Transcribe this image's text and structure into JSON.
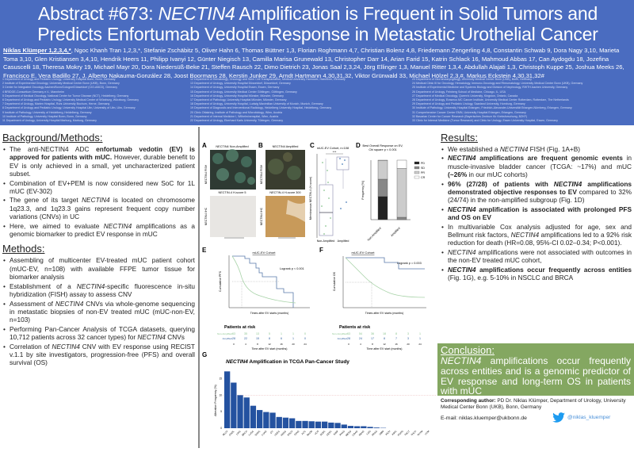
{
  "header": {
    "title_prefix": "Abstract #673: ",
    "title_gene": "NECTIN4",
    "title_rest_line1": " Amplification is Frequent in Solid Tumors and",
    "title_line2": "Predicts Enfortumab Vedotin Response in Metastatic Urothelial Cancer",
    "first_author": "Niklas Klümper 1,2,3,4,*",
    "authors": "Ngoc Khanh Tran 1,2,3,*, Stefanie Zschäbitz 5, Oliver Hahn 6, Thomas Büttner 1,3, Florian Roghmann 4,7, Christian Bolenz 4,8, Friedemann Zengerling 4,8, Constantin Schwab 9, Dora Nagy 3,10, Marieta Toma 3,10, Glen Kristiansen 3,4,10, Hendrik Heers 11, Philipp Ivanyi 12, Günter Niegisch 13, Camilla Marisa Grunewald 13, Christopher Darr 14, Arian Farid 15, Katrin Schlack 16, Mahmoud Abbas 17, Can Aydogdu 18, Jozefina Casuscelli 18, Theresa Mokry 19, Michael Mayr 20, Dora Niedersüß-Beke 21, Steffen Rausch 22, Dimo Dietrich 23, Jonas Saal 2,3,24, Jörg Ellinger 1,3, Manuel Ritter 1,3,4, Abdullah Alajati 1,3, Christoph Kuppe 25, Joshua Meeks 26, Francisco E. Vera Badillo 27, J. Alberto Nakauma-González 28, Joost Boormans 28, Kerstin Junker 29, Arndt Hartmann 4,30,31,32, Viktor Grünwald 33, Michael Hölzel 2,3,#, Markus Eckstein 4,30,31,32#",
    "affiliations_col1": [
      "1 Department of Urology and Pediatric Urology, University Hospital Bonn, Bonn, Germany",
      "2 Institute of Experimental Oncology, University Medical Center Bonn (UKB), Bonn, Germany",
      "3 Center for Integrated Oncology Aachen/Bonn/Cologne/Düsseldorf (CIO-ABCD), Germany",
      "4 BRIDGE-Consortium Germany e.V., Mannheim",
      "5 Department of Medical Oncology, National Center for Tumor Disease (NCT), Heidelberg, Germany",
      "6 Department of Urology and Pediatric Urology, University Medical Center of Würzburg, Würzburg, Germany",
      "7 Department of Urology, Marien Hospital, Ruhr-University Bochum, Herne, Germany",
      "8 Department of Urology and Pediatric Urology, University Hospital Ulm, University of Ulm, Ulm, Germany",
      "9 Institute of Pathology, University of Heidelberg, Heidelberg, Germany",
      "10 Institute of Pathology, University Hospital Bonn, Bonn, Germany",
      "11 Department of Urology, University Hospital Marburg, Marburg, Germany"
    ],
    "affiliations_col2": [
      "12 Department of Hematology, Oncology and Stem Cell Transplantation, Medical University Hannover, Hannover, Germany",
      "13 Department of Urology, University Hospital Düsseldorf, Düsseldorf, Germany",
      "14 Department of Urology, University Hospital Essen, Essen, Germany",
      "15 Department of Urology, University Medical Center Göttingen, Göttingen, Germany",
      "16 Department of Urology, University Hospital Münster, Münster, Germany",
      "17 Department of Pathology, University Hospital Münster, Münster, Germany",
      "18 Department of Urology, University Hospital, Ludwig Maximilian University of Munich, Munich, Germany",
      "19 Department of Diagnostic and Interventional Radiology, Heidelberg University Hospital, Heidelberg, Germany",
      "20 Clinic Ottakring, Institute of Pathology and Microbiology, Wien, Austria",
      "21 Department of Internal Medicine I, Wilhelminenspital, Wien, Austria",
      "22 Department of Urology, Eberhard Karls University, Tübingen, Germany"
    ],
    "affiliations_col3": [
      "23 Department of Otorhinolaryngology, University Medical Center Bonn (UKB), Bonn, Germany",
      "24 Medical Clinic III for Oncology, Hematology, Immuno-Oncology and Rheumatology, University Medical Center Bonn (UKB), Germany",
      "25 Institute of Experimental Medicine and Systems Biology and Division of Nephrology, RWTH Aachen University, Germany",
      "26 Department of Urology, Feinberg School of Medicine, Chicago, IL, USA",
      "27 Department of Medical Oncology, Queen's University, Kingston, Ontario, Canada",
      "28 Department of Urology, Erasmus MC Cancer Institute, University Medical Center Rotterdam, Rotterdam, The Netherlands",
      "29 Department of Urology and Pediatric Urology, Saarland University, Homburg, Germany",
      "30 Institute of Pathology, University Hospital Erlangen, Friedrich-Alexander-Universität Erlangen-Nürnberg, Erlangen, Germany",
      "31 Comprehensive Cancer Center EMN, University Hospital Erlangen, Erlangen, Germany",
      "32 Bavarian Center for Cancer Research (Bayerisches Zentrum für Krebsforschung, BZKF)",
      "33 Clinic for Internal Medicine (Tumor Research) and Clinic for Urology, Essen University Hospital, Essen, Germany"
    ]
  },
  "background": {
    "heading": "Background/Methods:",
    "items": [
      {
        "pre": "The anti-NECTIN4 ADC ",
        "bold": "enfortumab vedotin (EV) is approved for patients with mUC.",
        "post": " However, durable benefit to EV is only achieved in a small, yet uncharacterized patient subset."
      },
      {
        "pre": "Combination of EV+PEM is now considered new SoC for 1L mUC (EV-302)",
        "bold": "",
        "post": ""
      },
      {
        "pre": "The gene of its target ",
        "ital": "NECTIN4",
        "post": " is located on chromosome 1q23.3, and 1q23.3 gains represent frequent copy number variations (CNVs) in UC"
      },
      {
        "pre": "Here, we aimed to evaluate ",
        "ital": "NECTIN4",
        "post": " amplifications as a genomic biomarker to predict EV response in mUC"
      }
    ]
  },
  "methods": {
    "heading": "Methods:",
    "items": [
      {
        "pre": "Assembling of multicenter EV-treated mUC patient cohort (mUC-EV, n=108) with available FFPE tumor tissue for biomarker analysis",
        "ital": "",
        "post": ""
      },
      {
        "pre": "Establishment of a ",
        "ital": "NECTIN4",
        "post": "-specific fluorescence in-situ hybridization (FISH) assay to assess CNV"
      },
      {
        "pre": "Assessment of ",
        "ital": "NECTIN4",
        "post": " CNVs via whole-genome sequencing in metastatic biopsies of non-EV treated mUC (mUC-non-EV, n=103)"
      },
      {
        "pre": "Performing Pan-Cancer Analysis of TCGA datasets, querying 10,712 patients across 32 cancer types) for ",
        "ital": "NECTIN4",
        "post": " CNVs"
      },
      {
        "pre": "Correlation of ",
        "ital": "NECTIN4",
        "post": " CNV with EV response using RECIST v.1.1 by site investigators, progression-free (PFS) and overall survival (OS)"
      }
    ]
  },
  "results": {
    "heading": "Results:",
    "items": [
      {
        "html": "We established a <i>NECTIN4</i> FISH (Fig. 1A+B)"
      },
      {
        "html": "<b><i>NECTIN4</i> amplifications are frequent genomic events</b> in muscle-invasive bladder cancer (TCGA: ~17%) and mUC <b>(~26%</b> in our mUC cohorts)"
      },
      {
        "html": "<b>96% (27/28) of patients with <i>NECTIN4</i> amplifications demonstrated objective responses to EV</b> compared to 32% (24/74) in the non-amplified subgroup (Fig. 1D)"
      },
      {
        "html": "<b><i>NECTIN4</i> amplification is associated with prolonged PFS and OS on EV</b>"
      },
      {
        "html": "In multivariable Cox analysis adjusted for age, sex and Bellmunt risk factors, <i>NECTIN4</i> amplifications led to a 92% risk reduction for death (HR=0.08, 95%-CI 0.02–0.34; P&lt;0.001)."
      },
      {
        "html": "<i>NECTIN4</i> amplifications were not associated with outcomes in the non-EV treated mUC cohort,"
      },
      {
        "html": "<b><i>NECTIN4</i> amplifications occur frequently across entities</b> (Fig. 1G), e.g. 5-10% in NSCLC and BRCA"
      }
    ]
  },
  "conclusion": {
    "heading": "Conclusion:",
    "gene": "NECTIN4",
    "text": " amplifications occur frequently across entities and is a genomic predictor of EV response and long-term OS in patients with mUC"
  },
  "contact": {
    "label": "Corresponding author:",
    "text": " PD Dr. Niklas Klümper, Department of Urology, University Medical Center Bonn (UKB), Bonn, Germany",
    "email": "E-mail: niklas.kluemper@ukbonn.de",
    "twitter": "@niklas_kluemper",
    "twitter_color": "#1d9bf0"
  },
  "figure": {
    "panelA": {
      "label": "A",
      "title_fish": "NECTIN4 Non-Amplified",
      "title_ihc": "NECTIN-4 H-score 5",
      "row1": "NECTIN4 FISH",
      "row2": "NECTIN4 IHC"
    },
    "panelB": {
      "label": "B",
      "title_fish": "NECTIN4 Amplified",
      "title_ihc": "NECTIN-4 H-score 300"
    },
    "panelC": {
      "label": "C",
      "title": "mUC-EV Cohort, n=108",
      "ylabel": "Membranous NECTIN-4 (H-score)",
      "ticks": [
        "0",
        "100",
        "200",
        "300"
      ],
      "cats": [
        "Non-Amplified",
        "Amplified"
      ],
      "sig": "***"
    },
    "panelD": {
      "label": "D",
      "title": "Best Overall Response on EV,",
      "subtitle": "Chi square p < 0.001",
      "ylabel": "Frequency [%]",
      "legend": [
        "PD",
        "SD",
        "PR",
        "CR"
      ],
      "ticks": [
        "0.0",
        "0.2",
        "0.4",
        "0.6",
        "0.8",
        "1.0"
      ],
      "cats": [
        "Non-Amplified",
        "Amplified"
      ]
    },
    "panelE": {
      "label": "E",
      "title": "mUC-EV Cohort",
      "stat": "Logrank p < 0.001",
      "ylabel": "Cumulative PFS",
      "xlabel": "Times after EV starts (months)",
      "risk_title": "Patients at risk",
      "risk_rows": [
        {
          "name": "Non-Amplified",
          "vals": [
            "63",
            "35",
            "13",
            "5",
            "1",
            "1",
            "0"
          ]
        },
        {
          "name": "Amplified",
          "vals": [
            "28",
            "22",
            "15",
            "8",
            "6",
            "1",
            "0"
          ]
        }
      ],
      "xticks": [
        "0",
        "4",
        "8",
        "12",
        "16",
        "20",
        "24"
      ],
      "risk_xlabel": "Time after EV start (months)"
    },
    "panelF": {
      "label": "F",
      "title": "mUC-EV Cohort",
      "stat": "Logrank p = 0.003",
      "ylabel": "Cumulative OS",
      "xlabel": "Times after EV starts (months)",
      "risk_title": "Patients at risk",
      "risk_rows": [
        {
          "name": "Non-Amplified",
          "vals": [
            "63",
            "54",
            "36",
            "18",
            "8",
            "3",
            "1"
          ]
        },
        {
          "name": "Amplified",
          "vals": [
            "28",
            "24",
            "17",
            "8",
            "7",
            "3",
            "1"
          ]
        }
      ],
      "xticks": [
        "0",
        "4",
        "8",
        "12",
        "16",
        "20",
        "24"
      ],
      "risk_xlabel": "Time after EV start (months)"
    },
    "panelG": {
      "label": "G",
      "title_gene": "NECTIN4",
      "title_rest": " Amplification in TCGA Pan-Cancer Study",
      "ylabel": "Alteration Frequency (%)"
    }
  },
  "chart_data": [
    {
      "type": "bar",
      "title": "NECTIN4 Amplification in TCGA Pan-Cancer Study",
      "xlabel": "",
      "ylabel": "Alteration Frequency (%)",
      "ylim": [
        0,
        18
      ],
      "yticks": [
        0,
        5,
        10,
        15
      ],
      "reference_line": 10,
      "categories": [
        "BLCA",
        "CHOL",
        "LIHC",
        "BRCA",
        "LUSC",
        "SARC",
        "LUAD",
        "OV",
        "UCEC",
        "HNSC",
        "ESCA",
        "STAD",
        "ACC",
        "SKCM",
        "UCS",
        "DLBC",
        "CESC",
        "KIRP",
        "PAAD",
        "MESO",
        "COAD",
        "READ",
        "LGG",
        "PRAD",
        "GBM",
        "KICH",
        "KIRC",
        "PCPG",
        "TGCT",
        "THCA",
        "THYM",
        "UVM"
      ],
      "values": [
        17.2,
        13.8,
        10.0,
        9.3,
        6.8,
        5.5,
        4.9,
        4.7,
        3.4,
        3.2,
        3.0,
        2.2,
        2.2,
        2.1,
        2.0,
        2.0,
        1.7,
        1.6,
        1.1,
        0.7,
        0.6,
        0.6,
        0.4,
        0.2,
        0.1,
        0,
        0,
        0,
        0,
        0,
        0,
        0
      ]
    },
    {
      "type": "bar",
      "title": "Best Overall Response on EV, Chi square p < 0.001",
      "ylabel": "Frequency [%]",
      "categories": [
        "Non-Amplified",
        "Amplified"
      ],
      "stacked": true,
      "series": [
        {
          "name": "PD",
          "values": [
            0.39,
            0.0
          ]
        },
        {
          "name": "SD",
          "values": [
            0.29,
            0.04
          ]
        },
        {
          "name": "PR",
          "values": [
            0.31,
            0.82
          ]
        },
        {
          "name": "CR",
          "values": [
            0.01,
            0.14
          ]
        }
      ],
      "ylim": [
        0,
        1.0
      ]
    }
  ]
}
